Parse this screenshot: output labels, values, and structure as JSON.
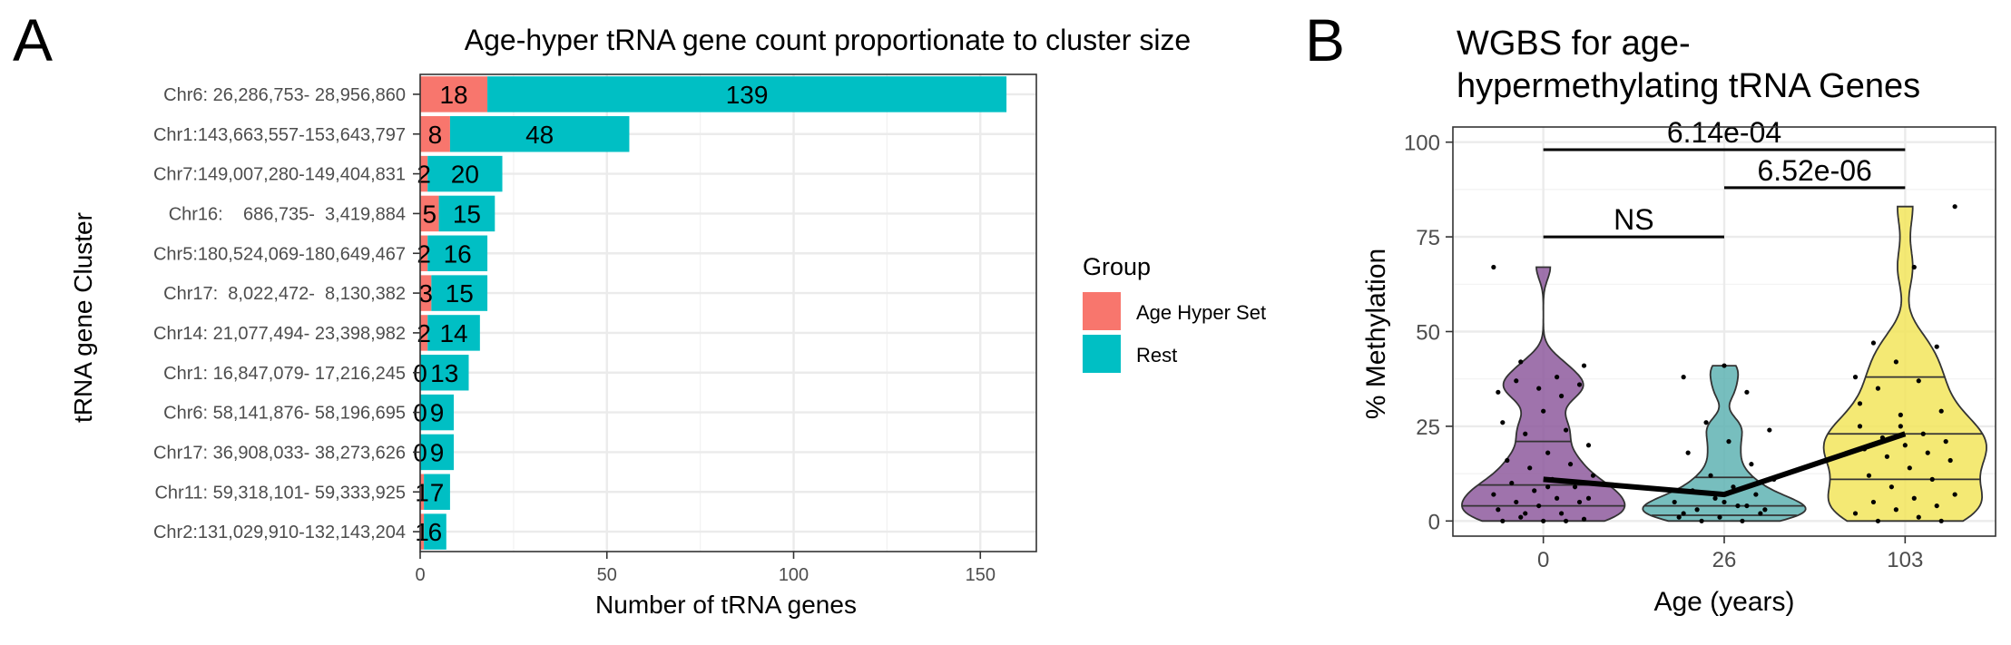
{
  "panels": {
    "a_letter": "A",
    "b_letter": "B"
  },
  "colors": {
    "age_hyper": "#F8766D",
    "rest": "#00BFC4",
    "violin_0": "#8E5A9E",
    "violin_26": "#5FB3B3",
    "violin_103": "#F2E55C",
    "grid": "#EBEBEB",
    "panel_border": "#333333"
  },
  "chart_data": [
    {
      "type": "bar",
      "orientation": "horizontal",
      "stacked": true,
      "title": "Age-hyper tRNA gene count proportionate to cluster size",
      "xlabel": "Number of tRNA genes",
      "ylabel": "tRNA gene Cluster",
      "xlim": [
        0,
        165
      ],
      "xticks": [
        0,
        50,
        100,
        150
      ],
      "grid": true,
      "legend": {
        "title": "Group",
        "position": "right",
        "entries": [
          "Age Hyper Set",
          "Rest"
        ]
      },
      "categories": [
        "Chr6: 26,286,753- 28,956,860",
        "Chr1:143,663,557-153,643,797",
        "Chr7:149,007,280-149,404,831",
        "Chr16:    686,735-  3,419,884",
        "Chr5:180,524,069-180,649,467",
        "Chr17:  8,022,472-  8,130,382",
        "Chr14: 21,077,494- 23,398,982",
        "Chr1: 16,847,079- 17,216,245",
        "Chr6: 58,141,876- 58,196,695",
        "Chr17: 36,908,033- 38,273,626",
        "Chr11: 59,318,101- 59,333,925",
        "Chr2:131,029,910-132,143,204"
      ],
      "series": [
        {
          "name": "Age Hyper Set",
          "values": [
            18,
            8,
            2,
            5,
            2,
            3,
            2,
            0,
            0,
            0,
            1,
            1
          ]
        },
        {
          "name": "Rest",
          "values": [
            139,
            48,
            20,
            15,
            16,
            15,
            14,
            13,
            9,
            9,
            7,
            6
          ]
        }
      ]
    },
    {
      "type": "violin",
      "title": "WGBS for age-\nhypermethylating tRNA Genes",
      "xlabel": "Age (years)",
      "ylabel": "% Methylation",
      "categories": [
        "0",
        "26",
        "103"
      ],
      "ylim": [
        -4,
        104
      ],
      "yticks": [
        0,
        25,
        50,
        75,
        100
      ],
      "grid": true,
      "groups": [
        {
          "name": "0",
          "range": [
            0,
            67
          ],
          "quartiles": [
            4,
            9.5,
            21
          ],
          "mean": 11,
          "points": [
            67,
            38,
            37,
            36,
            35,
            34,
            33,
            42,
            41,
            29,
            26,
            24,
            23,
            20,
            18,
            16,
            15,
            14,
            12,
            11,
            10,
            9,
            8,
            7,
            6,
            5,
            5,
            4,
            3,
            2,
            1,
            0.5,
            0,
            0,
            0,
            2,
            6,
            9
          ]
        },
        {
          "name": "26",
          "range": [
            0,
            41
          ],
          "quartiles": [
            1.5,
            4,
            11.5
          ],
          "mean": 7,
          "points": [
            41,
            38,
            34,
            26,
            24,
            21,
            18,
            15,
            12,
            11,
            9,
            8,
            7,
            6,
            5,
            4,
            3,
            2,
            1,
            1,
            0,
            0,
            3,
            5,
            2,
            4
          ]
        },
        {
          "name": "103",
          "range": [
            0,
            83
          ],
          "quartiles": [
            11,
            23,
            38
          ],
          "mean": 23,
          "points": [
            83,
            67,
            47,
            46,
            42,
            38,
            37,
            35,
            29,
            28,
            25,
            23,
            22,
            21,
            20,
            19,
            18,
            17,
            16,
            14,
            12,
            11,
            9,
            7,
            6,
            5,
            4,
            3,
            2,
            1,
            0,
            0,
            25,
            31
          ]
        }
      ],
      "annotations": [
        {
          "label": "6.14e-04",
          "from": "0",
          "to": "103",
          "y": 98
        },
        {
          "label": "6.52e-06",
          "from": "26",
          "to": "103",
          "y": 88
        },
        {
          "label": "NS",
          "from": "0",
          "to": "26",
          "y": 75
        }
      ]
    }
  ]
}
